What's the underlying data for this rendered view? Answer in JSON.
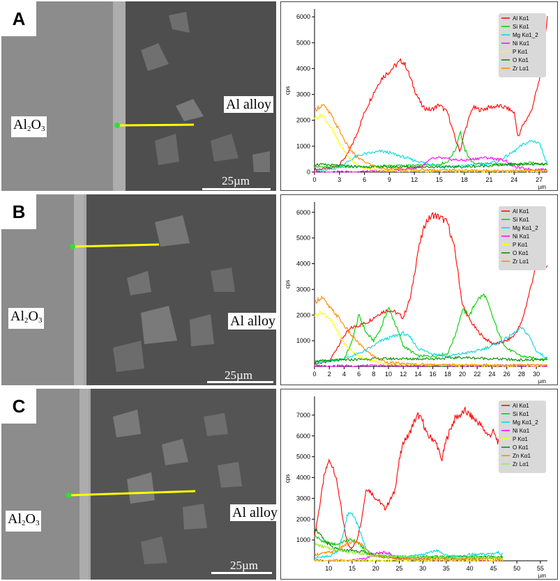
{
  "panels": [
    {
      "letter": "A",
      "oxide_label": "Al",
      "oxide_sub1": "2",
      "oxide_mid": "O",
      "oxide_sub2": "3",
      "alloy_label": "Al alloy",
      "scale_label": "25µm"
    },
    {
      "letter": "B",
      "oxide_label": "Al",
      "oxide_sub1": "2",
      "oxide_mid": "O",
      "oxide_sub2": "3",
      "alloy_label": "Al alloy",
      "scale_label": "25µm"
    },
    {
      "letter": "C",
      "oxide_label": "Al",
      "oxide_sub1": "2",
      "oxide_mid": "O",
      "oxide_sub2": "3",
      "alloy_label": "Al alloy",
      "scale_label": "25µm"
    }
  ],
  "chart_data": [
    {
      "type": "line",
      "ylabel": "cps",
      "xunit": "µm",
      "xlim": [
        0,
        28
      ],
      "ylim": [
        0,
        6300
      ],
      "xticks": [
        0,
        3,
        6,
        9,
        12,
        15,
        18,
        21,
        24,
        27
      ],
      "yticks": [
        0,
        1000,
        2000,
        3000,
        4000,
        5000,
        6000
      ],
      "legend_position": "top-right",
      "series": [
        {
          "name": "Al Kα1",
          "color": "#ff0000",
          "x": [
            0,
            2,
            3,
            4,
            5,
            6,
            7,
            8,
            9,
            10,
            10.5,
            11,
            12,
            13,
            14,
            15,
            16,
            17,
            17.5,
            18,
            19,
            20,
            21,
            22,
            23,
            24,
            24.5,
            25,
            26,
            27,
            28
          ],
          "y": [
            100,
            150,
            300,
            700,
            1400,
            2300,
            3000,
            3600,
            3900,
            4200,
            4300,
            4100,
            3200,
            2500,
            2400,
            2600,
            2300,
            1200,
            800,
            1500,
            2500,
            2400,
            2500,
            2550,
            2500,
            2300,
            1300,
            1800,
            2300,
            3500,
            6000
          ]
        },
        {
          "name": "Si Kα1",
          "color": "#00cc00",
          "x": [
            0,
            3,
            6,
            9,
            12,
            15,
            16,
            17,
            17.5,
            18,
            19,
            21,
            24,
            26,
            28
          ],
          "y": [
            200,
            200,
            200,
            250,
            250,
            300,
            400,
            900,
            1600,
            900,
            350,
            300,
            300,
            350,
            300
          ]
        },
        {
          "name": "Mg Kα1_2",
          "color": "#00d8e0",
          "x": [
            0,
            2,
            3,
            4,
            5,
            6,
            7,
            8,
            9,
            10,
            12,
            14,
            16,
            18,
            20,
            22,
            24,
            25,
            26,
            27,
            28
          ],
          "y": [
            50,
            100,
            200,
            400,
            600,
            700,
            750,
            800,
            750,
            650,
            450,
            300,
            200,
            250,
            300,
            400,
            800,
            1050,
            1200,
            1150,
            300
          ]
        },
        {
          "name": "Ni Kα1",
          "color": "#ff00ff",
          "x": [
            0,
            6,
            9,
            12,
            13,
            14,
            15,
            16,
            18,
            19,
            20,
            21,
            22,
            23,
            24,
            26,
            28
          ],
          "y": [
            0,
            20,
            50,
            150,
            250,
            500,
            550,
            500,
            450,
            500,
            550,
            550,
            500,
            450,
            200,
            100,
            100
          ]
        },
        {
          "name": "P Kα1",
          "color": "#ffff00",
          "x": [
            0,
            1,
            2,
            3,
            4,
            5,
            6,
            8,
            12,
            18,
            24,
            28
          ],
          "y": [
            2100,
            2200,
            1700,
            1100,
            600,
            300,
            150,
            60,
            40,
            30,
            30,
            30
          ]
        },
        {
          "name": "O Kα1",
          "color": "#008800",
          "x": [
            0,
            3,
            6,
            9,
            12,
            15,
            18,
            21,
            24,
            28
          ],
          "y": [
            300,
            250,
            200,
            200,
            200,
            200,
            200,
            250,
            300,
            300
          ]
        },
        {
          "name": "Zr Lα1",
          "color": "#ff8800",
          "x": [
            0,
            1,
            2,
            3,
            4,
            5,
            6,
            7,
            8,
            10,
            14,
            20,
            28
          ],
          "y": [
            2400,
            2600,
            2200,
            1600,
            1000,
            600,
            400,
            250,
            150,
            100,
            80,
            60,
            50
          ]
        }
      ]
    },
    {
      "type": "line",
      "ylabel": "cps",
      "xunit": "µm",
      "xlim": [
        0,
        31.5
      ],
      "ylim": [
        0,
        6400
      ],
      "xticks": [
        0,
        2,
        4,
        6,
        8,
        10,
        12,
        14,
        16,
        18,
        20,
        22,
        24,
        26,
        28,
        30
      ],
      "yticks": [
        1000,
        2000,
        3000,
        4000,
        5000,
        6000
      ],
      "legend_position": "top-right",
      "series": [
        {
          "name": "Al Kα1",
          "color": "#ff0000",
          "x": [
            0,
            2,
            3,
            4,
            5,
            6,
            7,
            8,
            9,
            10,
            11,
            12,
            13,
            14,
            15,
            16,
            17,
            18,
            19,
            20,
            21,
            22,
            23,
            24,
            25,
            26,
            27,
            28,
            29,
            30,
            31.5
          ],
          "y": [
            100,
            200,
            700,
            1200,
            1500,
            1600,
            1700,
            1900,
            2100,
            2200,
            2100,
            1900,
            2700,
            4500,
            5600,
            5900,
            5800,
            5600,
            4500,
            2400,
            1800,
            1400,
            1100,
            900,
            900,
            1000,
            1200,
            1700,
            2800,
            4000,
            3900
          ]
        },
        {
          "name": "Si Kα1",
          "color": "#00cc00",
          "x": [
            0,
            2,
            4,
            5,
            6,
            7,
            8,
            9,
            10,
            11,
            12,
            14,
            16,
            18,
            19,
            20,
            21,
            22,
            23,
            24,
            25,
            26,
            28,
            30,
            31.5
          ],
          "y": [
            200,
            200,
            300,
            900,
            2000,
            1300,
            1000,
            1500,
            2300,
            1600,
            800,
            400,
            400,
            500,
            1200,
            2200,
            2000,
            2600,
            2800,
            2000,
            1200,
            700,
            400,
            300,
            300
          ]
        },
        {
          "name": "Mg Kα1_2",
          "color": "#00d8e0",
          "x": [
            0,
            2,
            4,
            6,
            8,
            9,
            10,
            11,
            12,
            13,
            14,
            16,
            18,
            20,
            22,
            24,
            26,
            27,
            28,
            29,
            30,
            31.5
          ],
          "y": [
            100,
            200,
            300,
            500,
            800,
            1000,
            1100,
            1200,
            1300,
            1100,
            700,
            500,
            400,
            500,
            600,
            800,
            1100,
            1300,
            1500,
            1200,
            600,
            300
          ]
        },
        {
          "name": "Ni Kα1",
          "color": "#ff00ff",
          "x": [
            0,
            10,
            20,
            31.5
          ],
          "y": [
            20,
            30,
            30,
            30
          ]
        },
        {
          "name": "P Kα1",
          "color": "#ffff00",
          "x": [
            0,
            1,
            2,
            3,
            4,
            5,
            6,
            8,
            10,
            14,
            20,
            31.5
          ],
          "y": [
            2000,
            2100,
            1900,
            1400,
            900,
            600,
            400,
            200,
            100,
            60,
            40,
            30
          ]
        },
        {
          "name": "O Kα1",
          "color": "#008800",
          "x": [
            0,
            4,
            8,
            12,
            16,
            20,
            24,
            28,
            31.5
          ],
          "y": [
            200,
            250,
            300,
            300,
            300,
            350,
            300,
            250,
            250
          ]
        },
        {
          "name": "Zr Lα1",
          "color": "#ff8800",
          "x": [
            0,
            1,
            2,
            3,
            4,
            5,
            6,
            7,
            8,
            9,
            10,
            12,
            14,
            18,
            24,
            31.5
          ],
          "y": [
            2500,
            2700,
            2300,
            2000,
            1600,
            1200,
            900,
            600,
            400,
            250,
            150,
            100,
            80,
            60,
            50,
            50
          ]
        }
      ]
    },
    {
      "type": "line",
      "ylabel": "cps",
      "xunit": "µm",
      "xlim": [
        7,
        56.5
      ],
      "ylim": [
        0,
        7900
      ],
      "xticks": [
        10,
        15,
        20,
        25,
        30,
        35,
        40,
        45,
        50,
        55
      ],
      "yticks": [
        1000,
        2000,
        3000,
        4000,
        5000,
        6000,
        7000
      ],
      "legend_position": "top-right",
      "series": [
        {
          "name": "Al Kα1",
          "color": "#ff0000",
          "x": [
            7,
            8,
            9,
            10,
            11,
            12,
            13,
            14,
            15,
            16,
            17,
            18,
            19,
            20,
            21,
            22,
            23,
            24,
            25,
            26,
            27,
            28,
            29,
            30,
            31,
            32,
            33,
            34,
            35,
            36,
            37,
            38,
            39,
            40,
            41,
            42,
            43,
            44,
            45,
            46,
            47
          ],
          "y": [
            1200,
            2500,
            4000,
            4800,
            4500,
            3500,
            2000,
            800,
            600,
            1000,
            2000,
            3500,
            3300,
            3000,
            2800,
            2500,
            2900,
            3300,
            4800,
            5800,
            6000,
            6600,
            7000,
            6700,
            6000,
            5900,
            5600,
            4800,
            5800,
            6400,
            6900,
            7000,
            7200,
            7000,
            6800,
            6600,
            6300,
            6000,
            6200,
            5700,
            5500
          ]
        },
        {
          "name": "Si Kα1",
          "color": "#00cc00",
          "x": [
            7,
            9,
            11,
            12,
            13,
            14,
            15,
            16,
            17,
            18,
            20,
            25,
            30,
            35,
            40,
            47
          ],
          "y": [
            1200,
            900,
            800,
            800,
            900,
            1000,
            1000,
            900,
            700,
            400,
            250,
            200,
            200,
            200,
            200,
            200
          ]
        },
        {
          "name": "Mg Kα1_2",
          "color": "#00d8e0",
          "x": [
            7,
            10,
            12,
            13,
            14,
            15,
            16,
            17,
            18,
            20,
            25,
            30,
            33,
            35,
            38,
            40,
            42,
            45,
            46,
            47
          ],
          "y": [
            150,
            200,
            500,
            1200,
            2200,
            2300,
            1800,
            1200,
            500,
            250,
            200,
            300,
            500,
            250,
            200,
            300,
            300,
            350,
            400,
            300
          ]
        },
        {
          "name": "Ni Kα1",
          "color": "#ff00ff",
          "x": [
            7,
            15,
            18,
            20,
            22,
            23,
            24,
            27,
            47
          ],
          "y": [
            20,
            30,
            100,
            350,
            400,
            350,
            100,
            40,
            30
          ]
        },
        {
          "name": "P Kα1",
          "color": "#ffff00",
          "x": [
            7,
            15,
            25,
            35,
            47
          ],
          "y": [
            20,
            20,
            20,
            20,
            20
          ]
        },
        {
          "name": "O Kα1",
          "color": "#008800",
          "x": [
            7,
            9,
            11,
            13,
            15,
            17,
            19,
            21,
            25,
            30,
            35,
            40,
            47
          ],
          "y": [
            1600,
            1000,
            600,
            500,
            500,
            450,
            300,
            200,
            150,
            150,
            150,
            150,
            150
          ]
        },
        {
          "name": "Zn Kα1",
          "color": "#ff8800",
          "x": [
            7,
            10,
            12,
            13,
            14,
            15,
            16,
            17,
            19,
            22,
            30,
            40,
            47
          ],
          "y": [
            300,
            400,
            500,
            700,
            800,
            900,
            900,
            800,
            300,
            150,
            100,
            100,
            100
          ]
        },
        {
          "name": "Zr Lα1",
          "color": "#99ee33",
          "x": [
            7,
            10,
            15,
            20,
            30,
            40,
            47
          ],
          "y": [
            800,
            600,
            400,
            250,
            150,
            150,
            150
          ]
        }
      ]
    }
  ]
}
